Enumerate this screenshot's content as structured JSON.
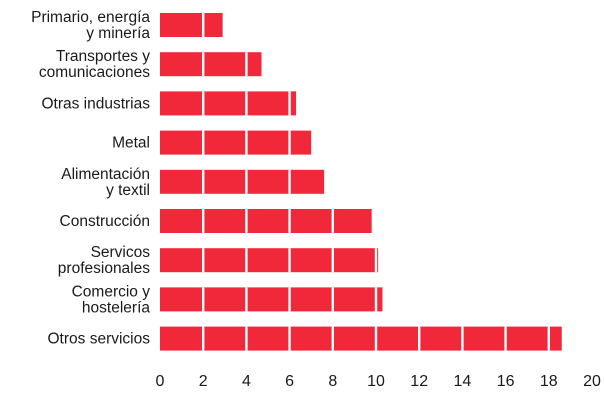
{
  "chart_data": {
    "type": "bar",
    "orientation": "horizontal",
    "bar_color": "#f0283a",
    "categories": [
      "Primario, energía\ny minería",
      "Transportes y\ncomunicaciones",
      "Otras industrias",
      "Metal",
      "Alimentación\ny textil",
      "Construcción",
      "Servicos\nprofesionales",
      "Comercio y\nhostelería",
      "Otros servicios"
    ],
    "values": [
      2.9,
      4.7,
      6.3,
      7.0,
      7.6,
      9.8,
      10.1,
      10.3,
      18.6
    ],
    "xlim": [
      0,
      20
    ],
    "xticks": [
      0,
      2,
      4,
      6,
      8,
      10,
      12,
      14,
      16,
      18,
      20
    ],
    "segment_every": 2,
    "grid": false,
    "title": "",
    "xlabel": "",
    "ylabel": ""
  }
}
